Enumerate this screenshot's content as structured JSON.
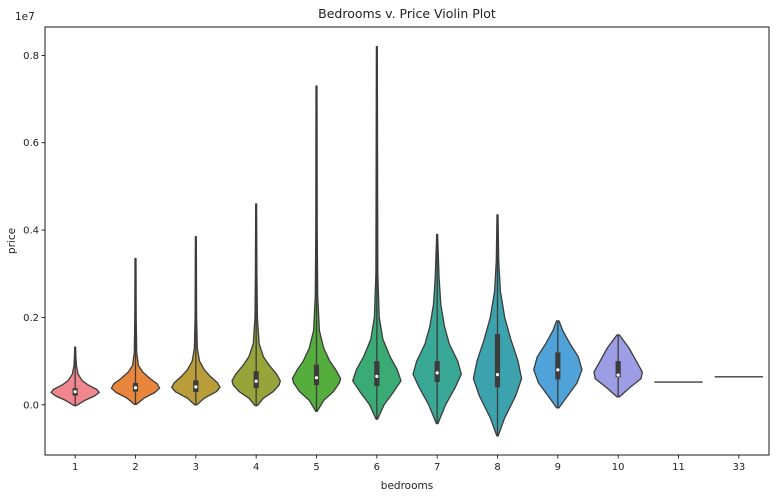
{
  "chart_data": {
    "type": "violin",
    "title": "Bedrooms v. Price Violin Plot",
    "xlabel": "bedrooms",
    "ylabel": "price",
    "y_offset_label": "1e7",
    "y_scale": 10000000,
    "ylim": [
      -1150000,
      8650000
    ],
    "y_ticks": [
      0.0,
      0.2,
      0.4,
      0.6,
      0.8
    ],
    "y_tick_labels": [
      "0.0",
      "0.2",
      "0.4",
      "0.6",
      "0.8"
    ],
    "categories": [
      "1",
      "2",
      "3",
      "4",
      "5",
      "6",
      "7",
      "8",
      "9",
      "10",
      "11",
      "33"
    ],
    "grid": false,
    "legend": "none",
    "colors": [
      "#f0868e",
      "#e8863d",
      "#b89d3a",
      "#97a43a",
      "#55ad3e",
      "#3aab75",
      "#3aa897",
      "#3ca3ae",
      "#4fa3d9",
      "#9d9de6",
      "#d092e8",
      "#e78ccd"
    ],
    "edge_color": "#3c3c3c",
    "violins": [
      {
        "category": "1",
        "low": -20000,
        "high": 1320000,
        "q1": 210000,
        "median": 300000,
        "q3": 380000,
        "profile": [
          [
            -20000,
            0.05
          ],
          [
            100000,
            0.4
          ],
          [
            200000,
            0.8
          ],
          [
            280000,
            1.0
          ],
          [
            350000,
            0.9
          ],
          [
            450000,
            0.55
          ],
          [
            550000,
            0.3
          ],
          [
            700000,
            0.12
          ],
          [
            900000,
            0.05
          ],
          [
            1100000,
            0.03
          ],
          [
            1320000,
            0.02
          ]
        ]
      },
      {
        "category": "2",
        "low": 10000,
        "high": 3350000,
        "q1": 300000,
        "median": 390000,
        "q3": 500000,
        "profile": [
          [
            10000,
            0.05
          ],
          [
            150000,
            0.35
          ],
          [
            280000,
            0.8
          ],
          [
            380000,
            1.0
          ],
          [
            480000,
            0.9
          ],
          [
            600000,
            0.6
          ],
          [
            750000,
            0.3
          ],
          [
            900000,
            0.12
          ],
          [
            1200000,
            0.05
          ],
          [
            2000000,
            0.03
          ],
          [
            3350000,
            0.02
          ]
        ]
      },
      {
        "category": "3",
        "low": 0,
        "high": 3850000,
        "q1": 290000,
        "median": 410000,
        "q3": 560000,
        "profile": [
          [
            0,
            0.05
          ],
          [
            150000,
            0.35
          ],
          [
            300000,
            0.85
          ],
          [
            400000,
            1.0
          ],
          [
            500000,
            0.9
          ],
          [
            650000,
            0.6
          ],
          [
            800000,
            0.35
          ],
          [
            1000000,
            0.15
          ],
          [
            1300000,
            0.06
          ],
          [
            2000000,
            0.03
          ],
          [
            3850000,
            0.02
          ]
        ]
      },
      {
        "category": "4",
        "low": -20000,
        "high": 4600000,
        "q1": 380000,
        "median": 540000,
        "q3": 770000,
        "profile": [
          [
            -20000,
            0.05
          ],
          [
            150000,
            0.3
          ],
          [
            300000,
            0.7
          ],
          [
            450000,
            0.95
          ],
          [
            550000,
            1.0
          ],
          [
            700000,
            0.85
          ],
          [
            900000,
            0.55
          ],
          [
            1100000,
            0.3
          ],
          [
            1400000,
            0.12
          ],
          [
            2000000,
            0.05
          ],
          [
            3000000,
            0.03
          ],
          [
            4600000,
            0.02
          ]
        ]
      },
      {
        "category": "5",
        "low": -150000,
        "high": 7300000,
        "q1": 450000,
        "median": 620000,
        "q3": 920000,
        "profile": [
          [
            -150000,
            0.03
          ],
          [
            100000,
            0.3
          ],
          [
            300000,
            0.7
          ],
          [
            500000,
            0.95
          ],
          [
            600000,
            1.0
          ],
          [
            800000,
            0.8
          ],
          [
            1000000,
            0.55
          ],
          [
            1300000,
            0.3
          ],
          [
            1700000,
            0.12
          ],
          [
            2500000,
            0.05
          ],
          [
            4000000,
            0.03
          ],
          [
            7300000,
            0.02
          ]
        ]
      },
      {
        "category": "6",
        "low": -330000,
        "high": 8200000,
        "q1": 430000,
        "median": 650000,
        "q3": 1000000,
        "profile": [
          [
            -330000,
            0.03
          ],
          [
            0,
            0.3
          ],
          [
            300000,
            0.7
          ],
          [
            550000,
            1.0
          ],
          [
            800000,
            0.85
          ],
          [
            1100000,
            0.55
          ],
          [
            1500000,
            0.25
          ],
          [
            2000000,
            0.1
          ],
          [
            3000000,
            0.04
          ],
          [
            5000000,
            0.03
          ],
          [
            8200000,
            0.02
          ]
        ]
      },
      {
        "category": "7",
        "low": -430000,
        "high": 3900000,
        "q1": 520000,
        "median": 730000,
        "q3": 1000000,
        "profile": [
          [
            -430000,
            0.03
          ],
          [
            0,
            0.35
          ],
          [
            400000,
            0.75
          ],
          [
            700000,
            1.0
          ],
          [
            1000000,
            0.85
          ],
          [
            1400000,
            0.5
          ],
          [
            1800000,
            0.3
          ],
          [
            2300000,
            0.15
          ],
          [
            2900000,
            0.08
          ],
          [
            3900000,
            0.02
          ]
        ]
      },
      {
        "category": "8",
        "low": -710000,
        "high": 4350000,
        "q1": 400000,
        "median": 690000,
        "q3": 1620000,
        "profile": [
          [
            -710000,
            0.03
          ],
          [
            -300000,
            0.3
          ],
          [
            200000,
            0.75
          ],
          [
            600000,
            1.0
          ],
          [
            1000000,
            0.85
          ],
          [
            1500000,
            0.55
          ],
          [
            2000000,
            0.3
          ],
          [
            2600000,
            0.12
          ],
          [
            3300000,
            0.05
          ],
          [
            4350000,
            0.02
          ]
        ]
      },
      {
        "category": "9",
        "low": -70000,
        "high": 1920000,
        "q1": 580000,
        "median": 800000,
        "q3": 1200000,
        "profile": [
          [
            -70000,
            0.05
          ],
          [
            200000,
            0.4
          ],
          [
            500000,
            0.8
          ],
          [
            800000,
            1.0
          ],
          [
            1100000,
            0.85
          ],
          [
            1400000,
            0.5
          ],
          [
            1700000,
            0.2
          ],
          [
            1920000,
            0.05
          ]
        ]
      },
      {
        "category": "10",
        "low": 180000,
        "high": 1600000,
        "q1": 630000,
        "median": 680000,
        "q3": 1000000,
        "profile": [
          [
            180000,
            0.05
          ],
          [
            400000,
            0.5
          ],
          [
            600000,
            0.95
          ],
          [
            750000,
            1.0
          ],
          [
            1000000,
            0.75
          ],
          [
            1300000,
            0.45
          ],
          [
            1600000,
            0.05
          ]
        ]
      },
      {
        "category": "11",
        "low": 520000,
        "high": 520000,
        "median": 520000,
        "profile": []
      },
      {
        "category": "33",
        "low": 640000,
        "high": 640000,
        "median": 640000,
        "profile": []
      }
    ]
  }
}
